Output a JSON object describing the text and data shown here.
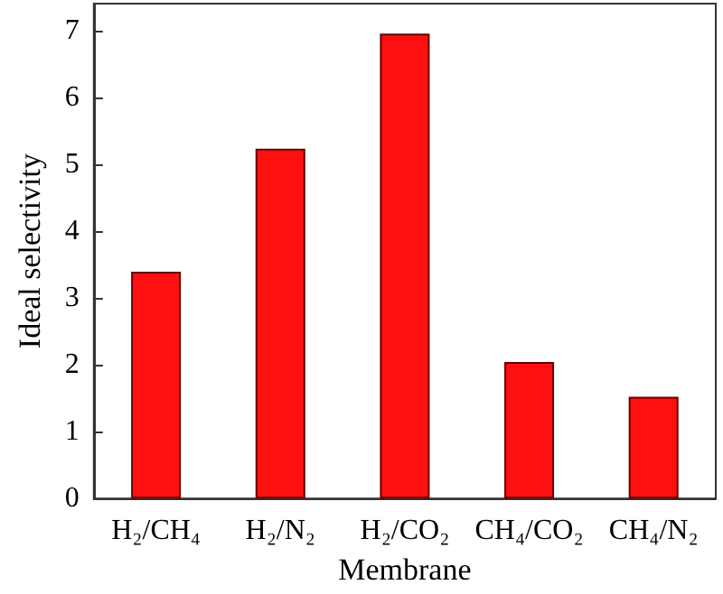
{
  "chart_data": {
    "type": "bar",
    "xlabel": "Membrane",
    "ylabel": "Ideal selectivity",
    "categories": [
      "H₂/CH₄",
      "H₂/N₂",
      "H₂/CO₂",
      "CH₄/CO₂",
      "CH₄/N₂"
    ],
    "values": [
      3.39,
      5.23,
      6.95,
      2.04,
      1.52
    ],
    "color": "#fe1010",
    "ylim": [
      0,
      7.4
    ],
    "yticks": [
      0,
      1,
      2,
      3,
      4,
      5,
      6,
      7
    ],
    "grid": false
  }
}
